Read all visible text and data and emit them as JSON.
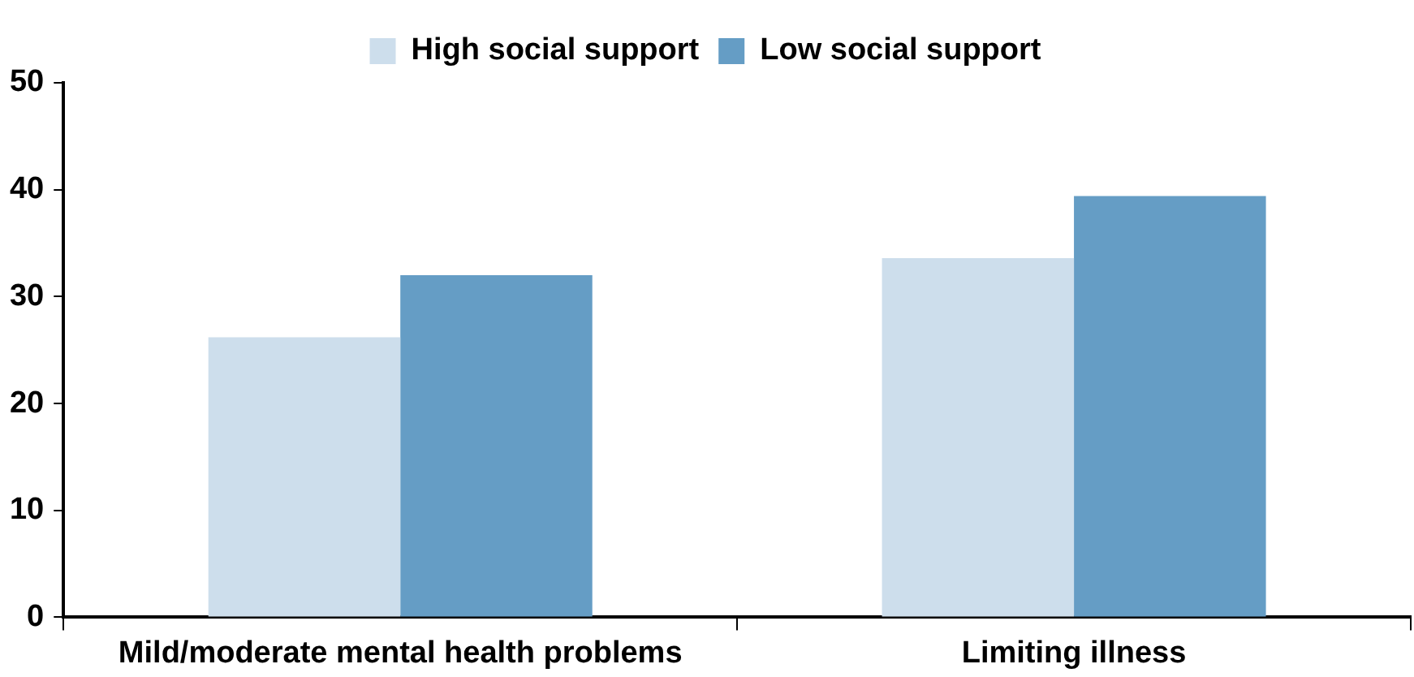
{
  "chart_data": {
    "type": "bar",
    "categories": [
      "Mild/moderate mental health problems",
      "Limiting illness"
    ],
    "series": [
      {
        "name": "High social support",
        "color": "#cddeec",
        "values": [
          26.2,
          33.6
        ]
      },
      {
        "name": "Low social support",
        "color": "#659dc5",
        "values": [
          32.0,
          39.4
        ]
      }
    ],
    "ylim": [
      0,
      50
    ],
    "yticks": [
      0,
      10,
      20,
      30,
      40,
      50
    ],
    "grid": false,
    "legend": "top"
  }
}
